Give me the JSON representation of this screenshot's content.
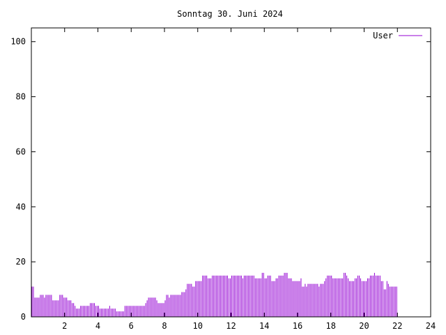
{
  "chart_data": {
    "type": "bar",
    "title": "Sonntag 30. Juni 2024",
    "xlabel": "",
    "ylabel": "",
    "xlim": [
      0,
      24
    ],
    "ylim": [
      0,
      105
    ],
    "x_ticks": [
      2,
      4,
      6,
      8,
      10,
      12,
      14,
      16,
      18,
      20,
      22,
      24
    ],
    "y_ticks": [
      0,
      20,
      40,
      60,
      80,
      100
    ],
    "grid": false,
    "legend_position": "top-right",
    "series": [
      {
        "name": "User",
        "color": "#9400d3",
        "interval_hours": 0.08333,
        "values": [
          11,
          11,
          7,
          7,
          7,
          7,
          8,
          8,
          8,
          7,
          8,
          8,
          8,
          8,
          8,
          6,
          6,
          6,
          6,
          6,
          8,
          8,
          8,
          7,
          7,
          7,
          6,
          6,
          6,
          5,
          5,
          4,
          3,
          3,
          3,
          4,
          4,
          4,
          4,
          4,
          4,
          4,
          5,
          5,
          5,
          5,
          4,
          4,
          4,
          3,
          3,
          3,
          3,
          3,
          3,
          3,
          4,
          3,
          3,
          3,
          3,
          2,
          2,
          2,
          2,
          2,
          2,
          4,
          4,
          4,
          4,
          4,
          4,
          4,
          4,
          4,
          4,
          4,
          4,
          4,
          4,
          4,
          5,
          6,
          7,
          7,
          7,
          7,
          7,
          7,
          6,
          5,
          5,
          5,
          5,
          5,
          6,
          8,
          8,
          7,
          8,
          8,
          8,
          8,
          8,
          8,
          8,
          8,
          9,
          9,
          9,
          10,
          12,
          12,
          12,
          12,
          11,
          11,
          13,
          13,
          13,
          13,
          13,
          15,
          15,
          15,
          15,
          14,
          14,
          14,
          15,
          15,
          15,
          15,
          15,
          15,
          15,
          15,
          15,
          15,
          15,
          15,
          14,
          14,
          15,
          15,
          15,
          15,
          15,
          15,
          15,
          15,
          14,
          15,
          15,
          15,
          15,
          15,
          15,
          15,
          15,
          14,
          14,
          14,
          14,
          14,
          16,
          16,
          14,
          14,
          15,
          15,
          15,
          13,
          13,
          13,
          14,
          14,
          15,
          15,
          15,
          15,
          16,
          16,
          16,
          14,
          14,
          14,
          13,
          13,
          13,
          13,
          13,
          13,
          14,
          11,
          11,
          12,
          11,
          12,
          12,
          12,
          12,
          12,
          12,
          12,
          12,
          11,
          12,
          12,
          12,
          13,
          14,
          15,
          15,
          15,
          15,
          14,
          14,
          14,
          14,
          14,
          14,
          14,
          14,
          16,
          16,
          15,
          14,
          13,
          13,
          13,
          13,
          14,
          14,
          15,
          15,
          14,
          13,
          13,
          13,
          13,
          14,
          14,
          15,
          15,
          15,
          16,
          15,
          15,
          15,
          15,
          13,
          13,
          10,
          10,
          13,
          12,
          11,
          11,
          11,
          11,
          11,
          11
        ]
      }
    ]
  }
}
